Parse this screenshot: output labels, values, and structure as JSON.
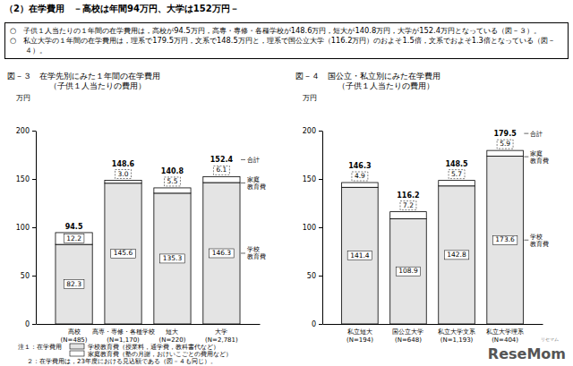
{
  "heading": "（2）在学費用　－高校は年間94万円、大学は152万円－",
  "summary": [
    "○　子供１人当たりの１年間の在学費用は，高校が94.5万円，高専・専修・各種学校が148.6万円，短大が140.8万円，大学が152.4万円となっている（図－３）。",
    "○　私立大学の１年間の在学費用は，理系で179.5万円，文系で148.5万円と，理系で国公立大学（116.2万円）のおよそ1.5倍，文系でおよそ1.3倍となっている（図－４）。"
  ],
  "chart_data": [
    {
      "type": "bar",
      "stacked": true,
      "data_labels": true,
      "legend": "right",
      "title": "図－３　在学先別にみた１年間の在学費用",
      "subtitle": "（子供１人当たりの費用）",
      "ylabel": "万円",
      "categories": [
        "高校\n(N=485)",
        "高専・専修・各種学校\n(N=1,170)",
        "短大\n(N=220)",
        "大学\n(N=2,781)"
      ],
      "series": [
        {
          "name": "学校教育費",
          "color": "#e4e4e4",
          "values": [
            82.3,
            145.6,
            135.3,
            146.3
          ]
        },
        {
          "name": "家庭教育費",
          "color": "#ffffff",
          "values": [
            12.2,
            3.0,
            5.5,
            6.1
          ],
          "value_labels": [
            "12.2",
            "3.0",
            "5.5",
            "6.1"
          ]
        }
      ],
      "totals": {
        "name": "合計",
        "values": [
          94.5,
          148.6,
          140.8,
          152.4
        ]
      },
      "ylim": [
        0,
        200
      ],
      "yticks": [
        0,
        50,
        100,
        150,
        200
      ]
    },
    {
      "type": "bar",
      "stacked": true,
      "data_labels": true,
      "legend": "right",
      "title": "図－４　国公立・私立別にみた在学費用",
      "subtitle": "（子供１人当たりの費用）",
      "ylabel": "万円",
      "categories": [
        "私立短大\n(N=194)",
        "国公立大学\n(N=648)",
        "私立大学文系\n(N=1,193)",
        "私立大学理系\n(N=404)"
      ],
      "series": [
        {
          "name": "学校教育費",
          "color": "#e4e4e4",
          "values": [
            141.4,
            108.9,
            142.8,
            173.6
          ]
        },
        {
          "name": "家庭教育費",
          "color": "#ffffff",
          "values": [
            4.9,
            7.2,
            5.7,
            5.9
          ]
        }
      ],
      "totals": {
        "name": "合計",
        "values": [
          146.3,
          116.2,
          148.5,
          179.5
        ]
      },
      "ylim": [
        0,
        200
      ],
      "yticks": [
        0,
        50,
        100,
        150,
        200
      ]
    }
  ],
  "notes": {
    "heading": "注１：在学費用",
    "items": [
      "学校教育費（授業料，通学費，教科書代など）",
      "家庭教育費（塾の月謝，おけいこごとの費用など）"
    ],
    "footnote": "２：在学費用は，23年度における見込額である（図－４も同じ）。"
  },
  "watermark": [
    "リセマム",
    "ReseMom"
  ]
}
